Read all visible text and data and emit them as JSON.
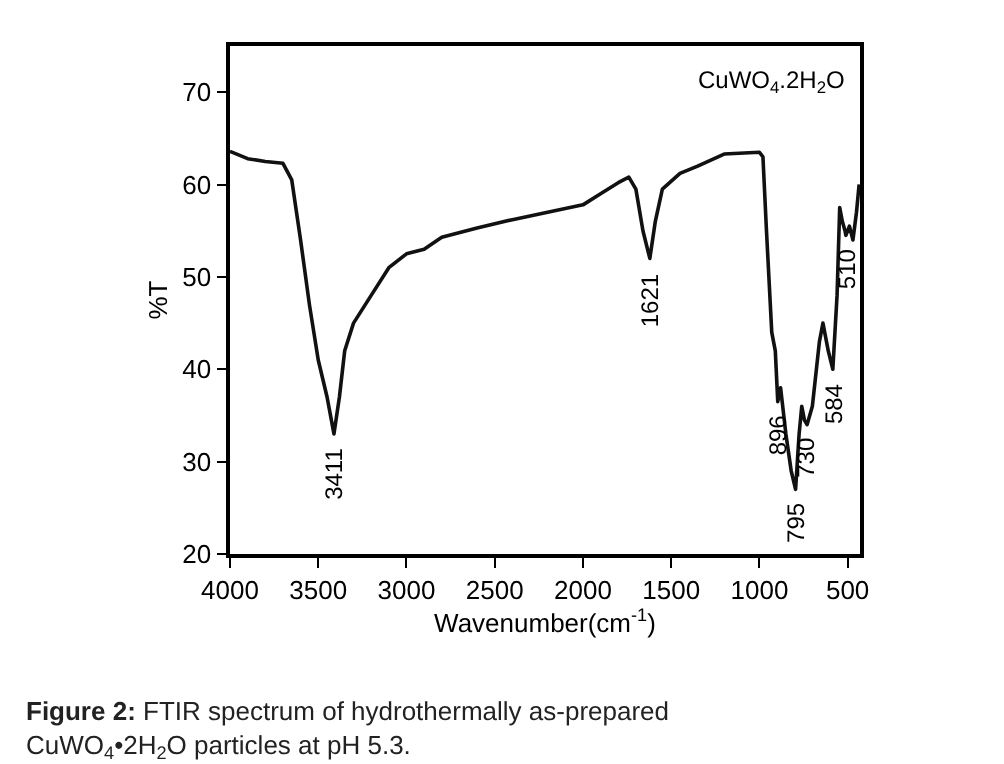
{
  "chart_data": {
    "type": "line",
    "xlabel": "Wavenumber(cm$^{-1}$)",
    "ylabel": "%T",
    "x": [
      4000,
      3900,
      3800,
      3700,
      3650,
      3600,
      3550,
      3500,
      3450,
      3411,
      3380,
      3350,
      3300,
      3200,
      3100,
      3000,
      2900,
      2800,
      2600,
      2400,
      2200,
      2000,
      1900,
      1800,
      1740,
      1700,
      1660,
      1621,
      1590,
      1550,
      1450,
      1350,
      1200,
      1000,
      980,
      960,
      930,
      910,
      896,
      880,
      850,
      820,
      795,
      775,
      760,
      745,
      730,
      700,
      660,
      640,
      610,
      584,
      560,
      545,
      530,
      515,
      510,
      490,
      470,
      450,
      435
    ],
    "series": [
      {
        "color": "#111111",
        "values": [
          63.6,
          62.8,
          62.5,
          62.3,
          60.5,
          54,
          47,
          41,
          37,
          33,
          37,
          42,
          45,
          48,
          51,
          52.5,
          53,
          54.3,
          55.3,
          56.2,
          57,
          57.8,
          59,
          60.2,
          60.8,
          59.5,
          55,
          52,
          56,
          59.5,
          61.2,
          62,
          63.3,
          63.5,
          63,
          55,
          44,
          42,
          36.5,
          38,
          33,
          29,
          27,
          33,
          36,
          34.5,
          34,
          36,
          43,
          45,
          42,
          40,
          48,
          57.5,
          56,
          55,
          54.5,
          55.5,
          54,
          57,
          60
        ]
      }
    ],
    "xlim": [
      4000,
      430
    ],
    "ylim": [
      20,
      75
    ],
    "xticks": [
      4000,
      3500,
      3000,
      2500,
      2000,
      1500,
      1000,
      500
    ],
    "yticks": [
      20,
      30,
      40,
      50,
      60,
      70
    ],
    "marker": "none",
    "line_style": "solid",
    "annotations": [
      "CuWO$_{4}$.2H$_{2}$O",
      {
        "text": "3411",
        "x": 3411,
        "y": 33
      },
      {
        "text": "1621",
        "x": 1621,
        "y": 52
      },
      {
        "text": "896",
        "x": 896,
        "y": 36.5
      },
      {
        "text": "795",
        "x": 795,
        "y": 27
      },
      {
        "text": "730",
        "x": 730,
        "y": 34
      },
      {
        "text": "584",
        "x": 584,
        "y": 40
      },
      {
        "text": "510",
        "x": 510,
        "y": 54.5
      },
      "Figure 2: FTIR spectrum of hydrothermally as-prepared CuWO$_{4}$•2H$_{2}$O particles at pH 5.3."
    ]
  }
}
